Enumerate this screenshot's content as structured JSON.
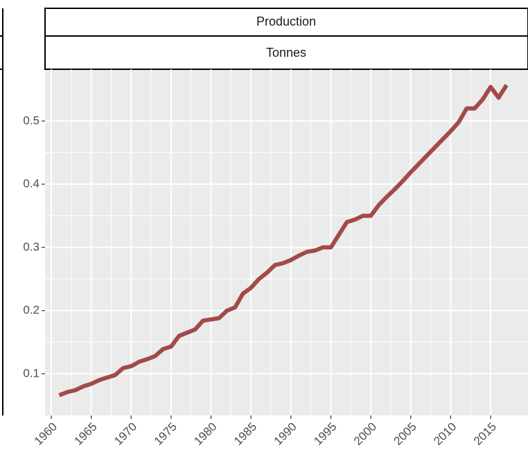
{
  "chart_data": {
    "type": "line",
    "strips": [
      "Production",
      "Tonnes"
    ],
    "x": [
      1961,
      1962,
      1963,
      1964,
      1965,
      1966,
      1967,
      1968,
      1969,
      1970,
      1971,
      1972,
      1973,
      1974,
      1975,
      1976,
      1977,
      1978,
      1979,
      1980,
      1981,
      1982,
      1983,
      1984,
      1985,
      1986,
      1987,
      1988,
      1989,
      1990,
      1991,
      1992,
      1993,
      1994,
      1995,
      1996,
      1997,
      1998,
      1999,
      2000,
      2001,
      2002,
      2003,
      2004,
      2005,
      2006,
      2007,
      2008,
      2009,
      2010,
      2011,
      2012,
      2013,
      2014,
      2015,
      2016,
      2017
    ],
    "values": [
      0.066,
      0.071,
      0.074,
      0.08,
      0.084,
      0.09,
      0.094,
      0.098,
      0.109,
      0.112,
      0.119,
      0.123,
      0.128,
      0.139,
      0.143,
      0.16,
      0.165,
      0.17,
      0.184,
      0.186,
      0.188,
      0.2,
      0.205,
      0.227,
      0.236,
      0.25,
      0.26,
      0.272,
      0.275,
      0.28,
      0.287,
      0.293,
      0.295,
      0.3,
      0.3,
      0.32,
      0.34,
      0.344,
      0.35,
      0.35,
      0.367,
      0.38,
      0.392,
      0.405,
      0.419,
      0.432,
      0.445,
      0.458,
      0.471,
      0.484,
      0.498,
      0.52,
      0.52,
      0.534,
      0.554,
      0.537,
      0.557
    ],
    "color": "#a34a4a",
    "xlim": [
      1959.22,
      2019.68
    ],
    "xticks": [
      1960,
      1965,
      1970,
      1975,
      1980,
      1985,
      1990,
      1995,
      2000,
      2005,
      2010,
      2015
    ],
    "ylim": [
      0.034,
      0.582
    ],
    "yticks": [
      0.1,
      0.2,
      0.3,
      0.4,
      0.5
    ],
    "grid": true
  }
}
